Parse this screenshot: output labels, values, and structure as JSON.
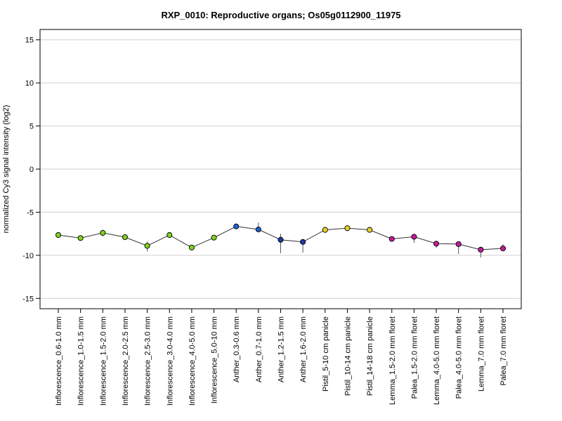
{
  "chart_data": {
    "type": "line",
    "title": "RXP_0010: Reproductive organs; Os05g0112900_11975",
    "xlabel": "",
    "ylabel": "normalized Cy3 signal intensity (log2)",
    "ylim": [
      -16.2,
      16.2
    ],
    "yticks": [
      15,
      10,
      5,
      0,
      -5,
      -10,
      -15
    ],
    "ytick_labels": [
      "15",
      "10",
      "5",
      "0",
      "-5",
      "-10",
      "-15"
    ],
    "grid": true,
    "categories": [
      "Inflorescence_0.6-1.0 mm",
      "Inflorescence_1.0-1.5 mm",
      "Inflorescence_1.5-2.0 mm",
      "Inflorescence_2.0-2.5 mm",
      "Inflorescence_2.5-3.0 mm",
      "Inflorescence_3.0-4.0 mm",
      "Inflorescence_4.0-5.0 mm",
      "Inflorescence_5.0-10 mm",
      "Anther_0.3-0.6 mm",
      "Anther_0.7-1.0 mm",
      "Anther_1.2-1.5 mm",
      "Anther_1.6-2.0 mm",
      "Pistil_5-10 cm panicle",
      "Pistil_10-14 cm panicle",
      "Pistil_14-18 cm panicle",
      "Lemma_1.5-2.0 mm floret",
      "Palea_1.5-2.0 mm floret",
      "Lemma_4.0-5.0 mm floret",
      "Palea_4.0-5.0 mm floret",
      "Lemma_7.0 mm floret",
      "Palea_7.0 mm floret"
    ],
    "values": [
      -7.65,
      -8.0,
      -7.4,
      -7.9,
      -8.9,
      -7.65,
      -9.1,
      -7.95,
      -6.65,
      -7.0,
      -8.2,
      -8.45,
      -7.05,
      -6.85,
      -7.05,
      -8.1,
      -7.85,
      -8.65,
      -8.7,
      -9.35,
      -9.2
    ],
    "error_low": [
      -7.85,
      -8.2,
      -7.8,
      -8.05,
      -9.55,
      -7.85,
      -9.45,
      -8.15,
      -6.8,
      -7.25,
      -9.75,
      -9.7,
      -7.4,
      -7.2,
      -7.25,
      -8.3,
      -8.55,
      -9.15,
      -9.85,
      -10.25,
      -9.55
    ],
    "error_high": [
      -7.45,
      -7.85,
      -7.05,
      -7.75,
      -8.45,
      -7.45,
      -8.8,
      -7.75,
      -6.5,
      -6.2,
      -7.5,
      -8.25,
      -6.8,
      -6.6,
      -6.85,
      -7.95,
      -7.7,
      -8.4,
      -8.45,
      -9.1,
      -8.7
    ],
    "point_colors": [
      "#7dd41c",
      "#7dd41c",
      "#7dd41c",
      "#7dd41c",
      "#7dd41c",
      "#7dd41c",
      "#7dd41c",
      "#7dd41c",
      "#1f63c9",
      "#1f63c9",
      "#1f3aa6",
      "#1f3aa6",
      "#e6d02a",
      "#e6d02a",
      "#e6d02a",
      "#c21b9a",
      "#c21b9a",
      "#c21b9a",
      "#c21b9a",
      "#c21b9a",
      "#c21b9a"
    ]
  }
}
